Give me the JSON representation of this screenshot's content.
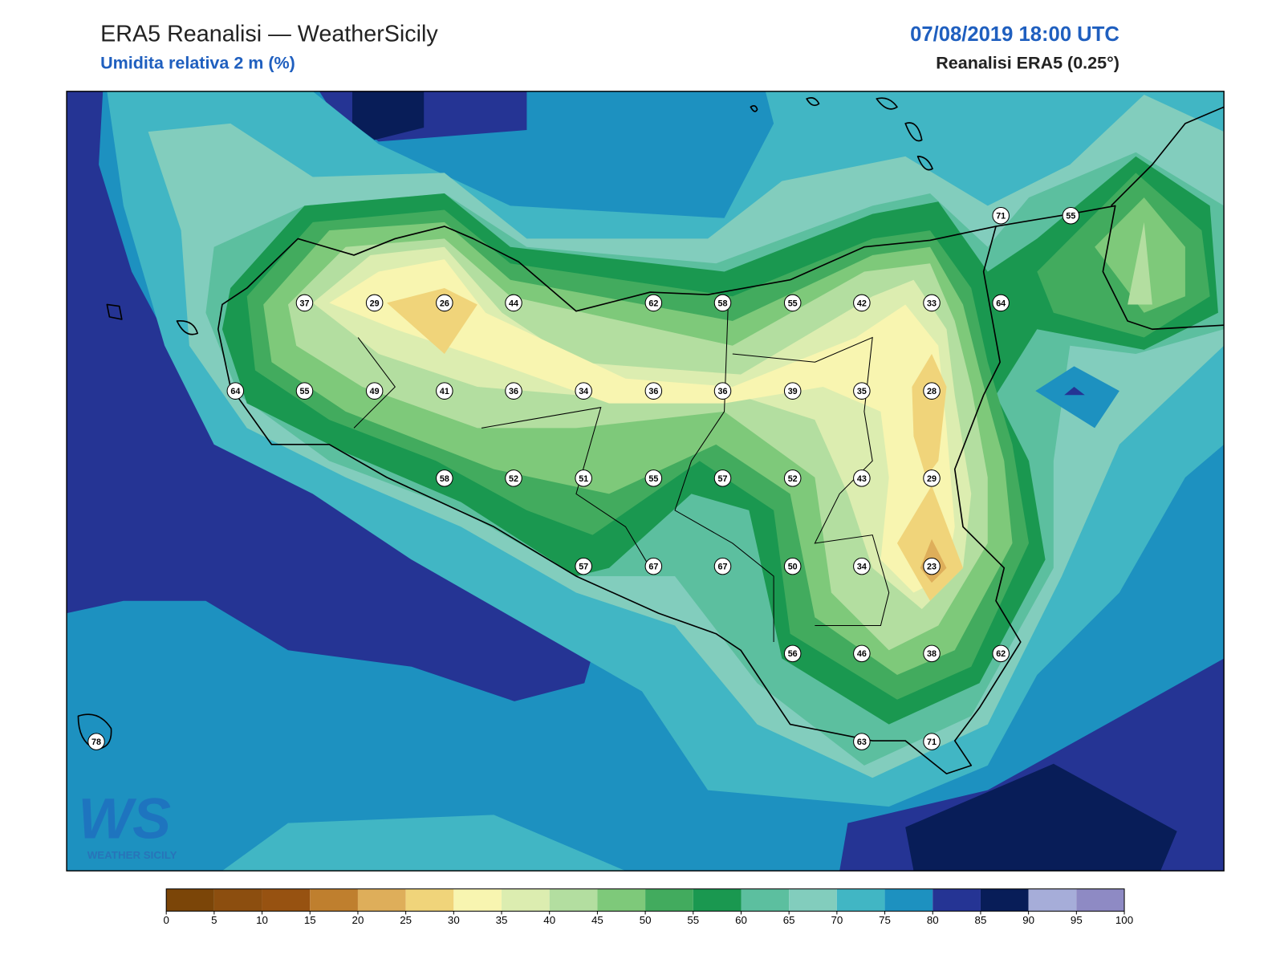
{
  "header": {
    "title": "ERA5 Reanalisi — WeatherSicily",
    "subtitle": "Umidita relativa 2 m (%)",
    "datetime": "07/08/2019 18:00 UTC",
    "source": "Reanalisi ERA5 (0.25°)"
  },
  "stations": [
    71,
    55,
    37,
    29,
    26,
    44,
    62,
    58,
    55,
    42,
    33,
    64,
    64,
    55,
    49,
    41,
    36,
    34,
    36,
    36,
    39,
    35,
    28,
    58,
    52,
    51,
    55,
    57,
    52,
    43,
    29,
    57,
    67,
    67,
    50,
    34,
    23,
    56,
    46,
    38,
    62,
    78,
    63,
    71
  ],
  "colorbar": {
    "ticks": [
      0,
      5,
      10,
      15,
      20,
      25,
      30,
      35,
      40,
      45,
      50,
      55,
      60,
      65,
      70,
      75,
      80,
      85,
      90,
      95,
      100
    ],
    "colors": [
      "#7b4508",
      "#8c4e0f",
      "#975211",
      "#bf7f2e",
      "#deae5a",
      "#f0d47a",
      "#f8f5b0",
      "#dcedb0",
      "#b3dea0",
      "#7ec97a",
      "#42ab5e",
      "#1a9850",
      "#5cbf9f",
      "#82cdbd",
      "#41b6c4",
      "#1d91c0",
      "#253494",
      "#081d58",
      "#a6add9",
      "#8e8ac4"
    ]
  },
  "logo": {
    "mark": "WS",
    "name": "WEATHER SICILY"
  }
}
